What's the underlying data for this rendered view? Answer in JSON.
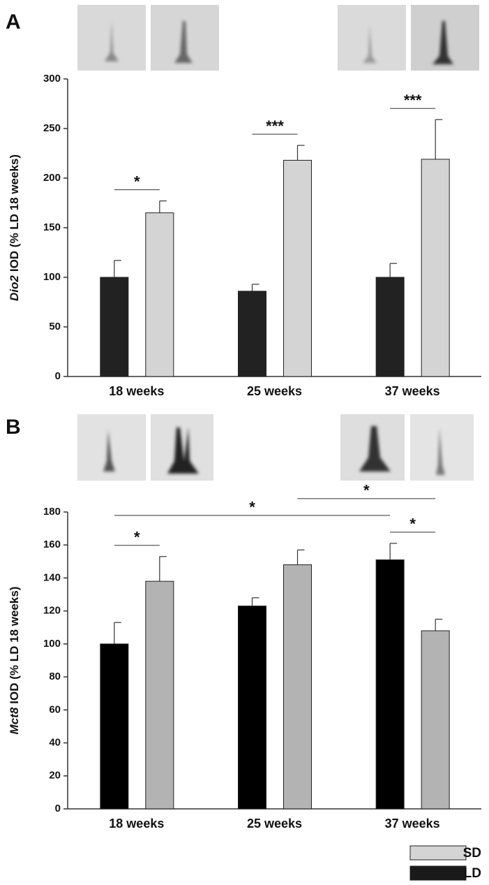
{
  "chart_data": [
    {
      "type": "bar",
      "panel": "A",
      "ylabel_italic": "Dio2",
      "ylabel": "IOD (% LD 18 weeks)",
      "categories": [
        "18 weeks",
        "25 weeks",
        "37 weeks"
      ],
      "series": [
        {
          "color": "#222222",
          "values": [
            100,
            86,
            100
          ],
          "errors": [
            17,
            7,
            14
          ]
        },
        {
          "color": "#d4d4d4",
          "values": [
            165,
            218,
            219
          ],
          "errors": [
            12,
            15,
            40
          ]
        }
      ],
      "ylim": [
        0,
        300
      ],
      "yticks": [
        0,
        50,
        100,
        150,
        200,
        250,
        300
      ],
      "annotations": [
        {
          "text": "*",
          "from": [
            0,
            0
          ],
          "to": [
            0,
            1
          ]
        },
        {
          "text": "***",
          "from": [
            1,
            0
          ],
          "to": [
            1,
            1
          ]
        },
        {
          "text": "***",
          "from": [
            2,
            0
          ],
          "to": [
            2,
            1
          ]
        }
      ]
    },
    {
      "type": "bar",
      "panel": "B",
      "ylabel_italic": "Mct8",
      "ylabel": "IOD (% LD 18 weeks)",
      "categories": [
        "18 weeks",
        "25 weeks",
        "37 weeks"
      ],
      "series": [
        {
          "color": "#000000",
          "values": [
            100,
            123,
            151
          ],
          "errors": [
            13,
            5,
            10
          ]
        },
        {
          "color": "#b3b3b3",
          "values": [
            138,
            148,
            108
          ],
          "errors": [
            15,
            9,
            7
          ]
        }
      ],
      "ylim": [
        0,
        180
      ],
      "yticks": [
        0,
        20,
        40,
        60,
        80,
        100,
        120,
        140,
        160,
        180
      ],
      "annotations": [
        {
          "text": "*",
          "from": [
            0,
            0
          ],
          "to": [
            0,
            1
          ]
        },
        {
          "text": "*",
          "from": [
            2,
            0
          ],
          "to": [
            2,
            1
          ]
        },
        {
          "text": "*",
          "from": [
            0,
            0
          ],
          "to": [
            2,
            0
          ]
        },
        {
          "text": "*",
          "from": [
            1,
            1
          ],
          "to": [
            2,
            1
          ]
        }
      ]
    }
  ],
  "legend": [
    {
      "name": "SD",
      "color": "#d4d4d4"
    },
    {
      "name": "LD",
      "color": "#1a1a1a"
    }
  ]
}
